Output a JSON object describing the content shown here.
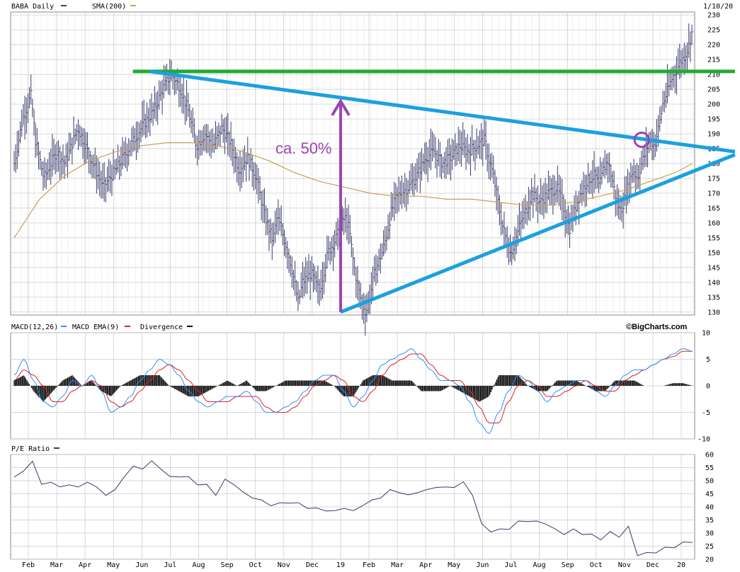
{
  "header": {
    "symbol_label": "BABA Daily",
    "sma_label": "SMA(200)",
    "date_label": "1/10/20"
  },
  "macd_header": {
    "macd_label": "MACD(12,26)",
    "ema_label": "MACD EMA(9)",
    "div_label": "Divergence",
    "brand": "©BigCharts.com"
  },
  "pe_header": {
    "pe_label": "P/E Ratio"
  },
  "annotation": {
    "text": "ca. 50%"
  },
  "colors": {
    "price": "#3b3b6b",
    "sma": "#c8a055",
    "resistance": "#22aa33",
    "trend": "#1ba0e0",
    "arrow": "#9b45b0",
    "macd": "#2f8fff",
    "ema": "#e02020",
    "divergence": "#000000",
    "grid": "#c8c8c8"
  },
  "chart_data": [
    {
      "type": "ohlc-line",
      "panel": "price",
      "y_ticks": [
        130,
        135,
        140,
        145,
        150,
        155,
        160,
        165,
        170,
        175,
        180,
        185,
        190,
        195,
        200,
        205,
        210,
        215,
        220,
        225,
        230
      ],
      "ylim": [
        129,
        231
      ],
      "x_ticks": [
        "Feb",
        "Mar",
        "Apr",
        "May",
        "Jun",
        "Jul",
        "Aug",
        "Sep",
        "Oct",
        "Nov",
        "Dec",
        "19",
        "Feb",
        "Mar",
        "Apr",
        "May",
        "Jun",
        "Jul",
        "Aug",
        "Sep",
        "Oct",
        "Nov",
        "Dec",
        "20"
      ],
      "price_path": [
        [
          0,
          180
        ],
        [
          2,
          195
        ],
        [
          4,
          203
        ],
        [
          5,
          188
        ],
        [
          7,
          175
        ],
        [
          10,
          184
        ],
        [
          12,
          180
        ],
        [
          15,
          192
        ],
        [
          18,
          182
        ],
        [
          21,
          172
        ],
        [
          24,
          178
        ],
        [
          27,
          185
        ],
        [
          30,
          192
        ],
        [
          33,
          198
        ],
        [
          35,
          205
        ],
        [
          37,
          210
        ],
        [
          39,
          206
        ],
        [
          41,
          198
        ],
        [
          43,
          186
        ],
        [
          45,
          190
        ],
        [
          47,
          186
        ],
        [
          49,
          192
        ],
        [
          51,
          187
        ],
        [
          53,
          178
        ],
        [
          55,
          182
        ],
        [
          57,
          176
        ],
        [
          59,
          163
        ],
        [
          61,
          154
        ],
        [
          62,
          162
        ],
        [
          63,
          158
        ],
        [
          65,
          148
        ],
        [
          66,
          141
        ],
        [
          67,
          133
        ],
        [
          68,
          140
        ],
        [
          70,
          143
        ],
        [
          72,
          137
        ],
        [
          74,
          150
        ],
        [
          76,
          155
        ],
        [
          78,
          162
        ],
        [
          79,
          158
        ],
        [
          80,
          147
        ],
        [
          81,
          139
        ],
        [
          82,
          133
        ],
        [
          83,
          130
        ],
        [
          84,
          136
        ],
        [
          85,
          143
        ],
        [
          86,
          147
        ],
        [
          87,
          151
        ],
        [
          88,
          157
        ],
        [
          89,
          164
        ],
        [
          90,
          168
        ],
        [
          91,
          170
        ],
        [
          93,
          172
        ],
        [
          95,
          176
        ],
        [
          97,
          182
        ],
        [
          99,
          184
        ],
        [
          101,
          180
        ],
        [
          103,
          182
        ],
        [
          105,
          186
        ],
        [
          107,
          184
        ],
        [
          109,
          186
        ],
        [
          111,
          188
        ],
        [
          112,
          181
        ],
        [
          113,
          176
        ],
        [
          114,
          168
        ],
        [
          115,
          160
        ],
        [
          116,
          155
        ],
        [
          117,
          150
        ],
        [
          118,
          153
        ],
        [
          119,
          158
        ],
        [
          120,
          162
        ],
        [
          121,
          165
        ],
        [
          122,
          170
        ],
        [
          124,
          167
        ],
        [
          126,
          170
        ],
        [
          128,
          172
        ],
        [
          129,
          168
        ],
        [
          130,
          163
        ],
        [
          131,
          158
        ],
        [
          132,
          163
        ],
        [
          133,
          168
        ],
        [
          135,
          174
        ],
        [
          137,
          176
        ],
        [
          138,
          172
        ],
        [
          139,
          178
        ],
        [
          140,
          181
        ],
        [
          141,
          175
        ],
        [
          142,
          168
        ],
        [
          143,
          164
        ],
        [
          144,
          168
        ],
        [
          145,
          173
        ],
        [
          146,
          178
        ],
        [
          147,
          175
        ],
        [
          148,
          180
        ],
        [
          149,
          184
        ],
        [
          150,
          188
        ],
        [
          151,
          186
        ],
        [
          152,
          192
        ],
        [
          153,
          200
        ],
        [
          154,
          204
        ],
        [
          155,
          208
        ],
        [
          156,
          211
        ],
        [
          157,
          214
        ],
        [
          158,
          216
        ],
        [
          159,
          219
        ],
        [
          160,
          225
        ]
      ],
      "sma_path": [
        [
          0,
          155
        ],
        [
          6,
          168
        ],
        [
          12,
          176
        ],
        [
          18,
          181
        ],
        [
          24,
          184
        ],
        [
          30,
          186
        ],
        [
          36,
          187
        ],
        [
          42,
          187
        ],
        [
          48,
          186
        ],
        [
          54,
          184
        ],
        [
          60,
          181
        ],
        [
          66,
          177
        ],
        [
          72,
          174
        ],
        [
          78,
          172
        ],
        [
          84,
          170
        ],
        [
          90,
          169
        ],
        [
          96,
          169
        ],
        [
          102,
          168
        ],
        [
          108,
          168
        ],
        [
          114,
          167
        ],
        [
          120,
          166
        ],
        [
          126,
          166
        ],
        [
          132,
          167
        ],
        [
          138,
          169
        ],
        [
          144,
          171
        ],
        [
          150,
          174
        ],
        [
          156,
          177
        ],
        [
          160,
          180
        ]
      ],
      "annotations": [
        {
          "kind": "line",
          "name": "resistance",
          "from": [
            28,
            211
          ],
          "to": [
            170,
            211
          ]
        },
        {
          "kind": "line",
          "name": "upper-trend",
          "from": [
            32,
            211
          ],
          "to": [
            170,
            184
          ]
        },
        {
          "kind": "line",
          "name": "lower-trend",
          "from": [
            77,
            130
          ],
          "to": [
            170,
            183
          ]
        },
        {
          "kind": "arrow",
          "name": "rise-arrow",
          "from": [
            77,
            130
          ],
          "to": [
            77,
            201
          ]
        },
        {
          "kind": "circle",
          "name": "breakout-circle",
          "at": [
            148,
            188
          ]
        }
      ]
    },
    {
      "type": "line",
      "panel": "macd",
      "y_ticks": [
        10,
        5,
        0,
        -5,
        -10
      ],
      "ylim": [
        -10,
        10
      ],
      "series": [
        {
          "name": "MACD(12,26)",
          "values": [
            2,
            5,
            1,
            -3,
            -4,
            -2,
            1,
            0,
            2,
            -1,
            -5,
            -4,
            -2,
            1,
            3,
            5,
            4,
            2,
            -1,
            -3,
            -4,
            -3,
            -2,
            -2,
            -1,
            -3,
            -5,
            -5,
            -4,
            -3,
            -1,
            1,
            2,
            2,
            -1,
            -4,
            -2,
            1,
            4,
            5,
            6,
            7,
            5,
            3,
            1,
            1,
            0,
            -3,
            -7,
            -9,
            -5,
            -1,
            2,
            1,
            -1,
            -3,
            -1,
            0,
            1,
            1,
            -1,
            -2,
            0,
            2,
            3,
            3,
            4,
            5,
            6,
            7,
            6.5
          ]
        },
        {
          "name": "MACD EMA(9)",
          "values": [
            1,
            3,
            2,
            0,
            -3,
            -3,
            -1,
            0,
            1,
            0,
            -3,
            -4,
            -3,
            -1,
            1,
            3,
            4,
            3,
            1,
            -1,
            -3,
            -3,
            -3,
            -2,
            -2,
            -2,
            -4,
            -5,
            -5,
            -4,
            -2,
            0,
            1,
            2,
            1,
            -2,
            -3,
            -1,
            2,
            4,
            5,
            6,
            6,
            4,
            2,
            1,
            1,
            -1,
            -4,
            -7,
            -7,
            -3,
            0,
            1,
            0,
            -2,
            -2,
            -1,
            0,
            1,
            0,
            -1,
            -1,
            1,
            2,
            3,
            4,
            5,
            5.5,
            6.5,
            6.5
          ]
        },
        {
          "name": "Divergence",
          "values": [
            1,
            2,
            -1,
            -3,
            -1,
            1,
            2,
            0,
            1,
            -1,
            -2,
            0,
            1,
            2,
            2,
            2,
            0,
            -1,
            -2,
            -2,
            -1,
            0,
            1,
            0,
            1,
            -1,
            -1,
            0,
            1,
            1,
            1,
            1,
            1,
            0,
            -2,
            -2,
            1,
            2,
            2,
            1,
            1,
            1,
            -1,
            -1,
            -1,
            0,
            -1,
            -2,
            -3,
            -2,
            2,
            2,
            2,
            0,
            -1,
            -1,
            1,
            1,
            1,
            0,
            -1,
            -1,
            1,
            1,
            1,
            0,
            0,
            0,
            0.5,
            0.5,
            0
          ]
        }
      ]
    },
    {
      "type": "line",
      "panel": "pe",
      "y_ticks": [
        60,
        55,
        50,
        45,
        40,
        35,
        30,
        25,
        20
      ],
      "ylim": [
        20,
        60
      ],
      "series": [
        {
          "name": "P/E Ratio",
          "values": [
            52,
            53,
            58,
            48,
            50,
            47,
            49,
            47,
            50,
            47,
            45,
            46,
            52,
            55,
            55,
            57,
            55,
            51,
            52,
            51,
            49,
            48,
            45,
            50,
            49,
            45,
            44,
            42,
            41,
            41,
            42,
            41,
            40,
            39,
            39,
            38,
            40,
            38,
            41,
            42,
            44,
            46,
            46,
            44,
            46,
            46,
            48,
            47,
            48,
            49,
            45,
            33,
            31,
            31,
            32,
            34,
            35,
            34,
            34,
            31,
            30,
            31,
            30,
            29,
            28,
            30,
            29,
            32,
            22,
            22,
            23,
            24,
            25,
            26,
            27
          ]
        }
      ]
    }
  ]
}
